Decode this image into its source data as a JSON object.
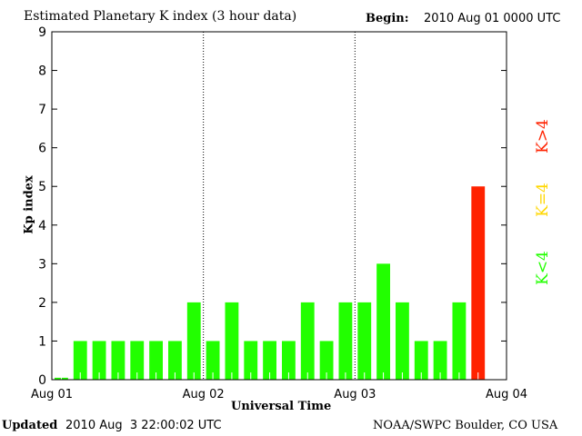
{
  "chart_data": {
    "type": "bar",
    "title": "Estimated Planetary K index (3 hour data)",
    "begin_label": "Begin:",
    "begin_value": "2010 Aug 01 0000 UTC",
    "xlabel": "Universal Time",
    "ylabel": "Kp index",
    "ylim": [
      0,
      9
    ],
    "yticks": [
      "0",
      "1",
      "2",
      "3",
      "4",
      "5",
      "6",
      "7",
      "8",
      "9"
    ],
    "xticks": [
      "Aug 01",
      "Aug 02",
      "Aug 03",
      "Aug 04"
    ],
    "bars_per_day": 8,
    "values": [
      0.05,
      1,
      1,
      1,
      1,
      1,
      1,
      2,
      1,
      2,
      1,
      1,
      1,
      2,
      1,
      2,
      2,
      3,
      2,
      1,
      1,
      2,
      5
    ],
    "colors": {
      "low": "#22ff00",
      "storm_threshold": "#ffd700",
      "high": "#ff2200"
    },
    "legend": [
      "K<4",
      "K=4",
      "K>4"
    ],
    "legend_placement": "right",
    "updated_label": "Updated",
    "updated_value": "2010 Aug  3 22:00:02 UTC",
    "credit": "NOAA/SWPC Boulder, CO USA"
  }
}
